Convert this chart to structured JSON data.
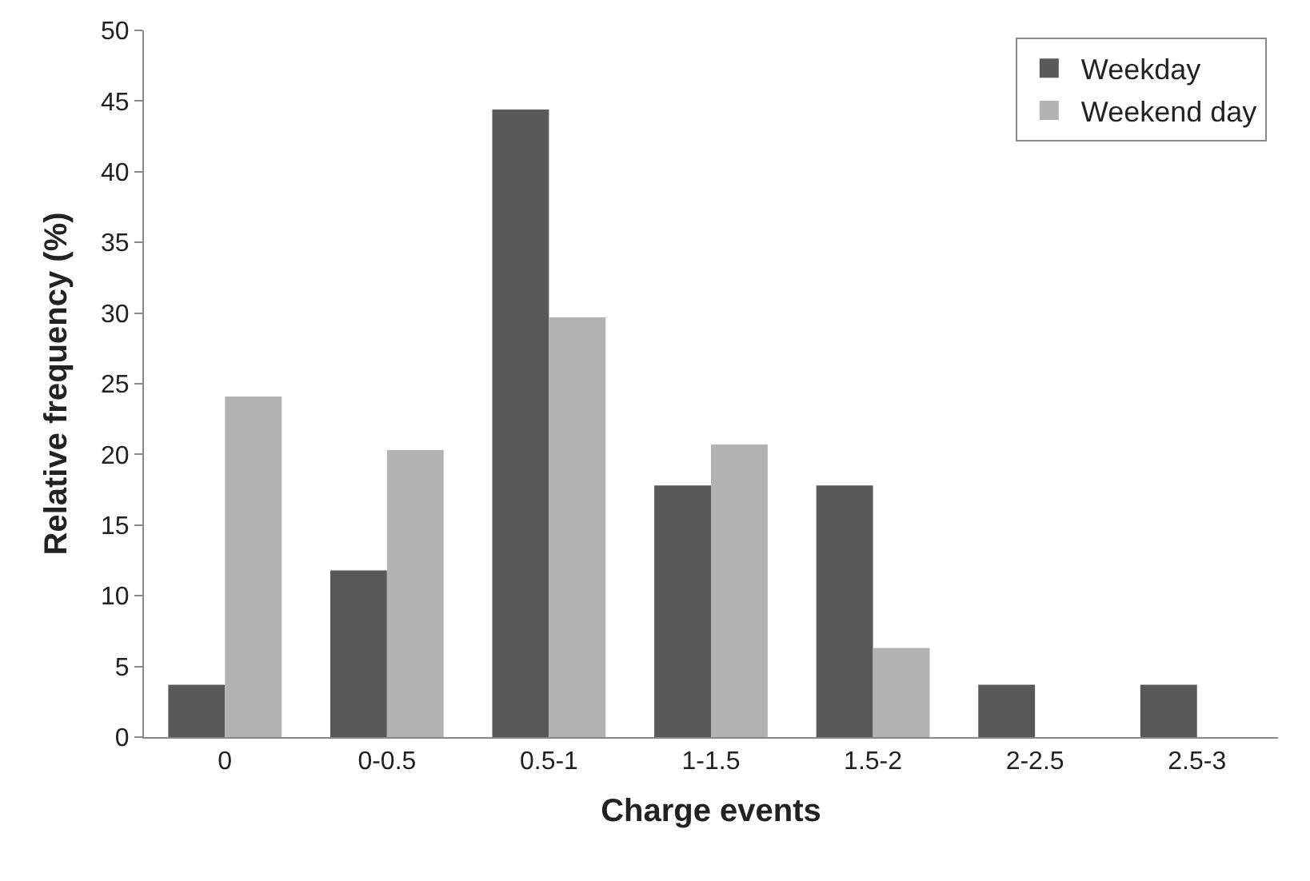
{
  "chart_data": {
    "type": "bar",
    "xlabel": "Charge events",
    "ylabel": "Relative frequency (%)",
    "categories": [
      "0",
      "0-0.5",
      "0.5-1",
      "1-1.5",
      "1.5-2",
      "2-2.5",
      "2.5-3"
    ],
    "series": [
      {
        "name": "Weekday",
        "color": "#595959",
        "values": [
          3.7,
          11.8,
          44.4,
          17.8,
          17.8,
          3.7,
          3.7
        ]
      },
      {
        "name": "Weekend day",
        "color": "#b3b3b3",
        "values": [
          24.1,
          20.3,
          29.7,
          20.7,
          6.3,
          0,
          0
        ]
      }
    ],
    "ylim": [
      0,
      50
    ],
    "yticks": [
      0,
      5,
      10,
      15,
      20,
      25,
      30,
      35,
      40,
      45,
      50
    ],
    "legend": "top right"
  }
}
